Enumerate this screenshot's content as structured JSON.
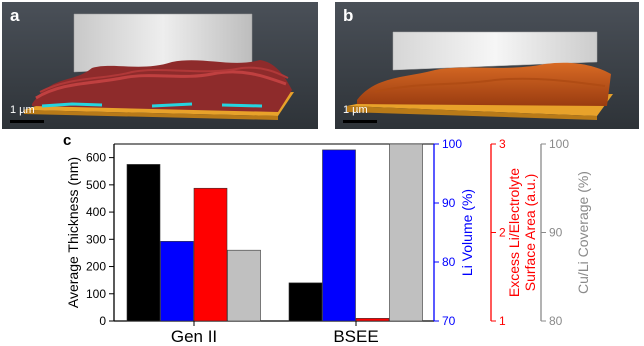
{
  "panel_a": {
    "letter": "a",
    "scale_label": "1 µm"
  },
  "panel_b": {
    "letter": "b",
    "scale_label": "1 µm"
  },
  "chart_letter": "c",
  "chart_data": {
    "type": "bar",
    "categories": [
      "Gen II",
      "BSEE"
    ],
    "series": [
      {
        "axis": "thickness",
        "color": "#000000",
        "values": [
          575,
          140
        ]
      },
      {
        "axis": "li_volume",
        "color": "#0000ff",
        "values": [
          83.5,
          99
        ]
      },
      {
        "axis": "surface_area",
        "color": "#ff0000",
        "values": [
          2.5,
          1.03
        ]
      },
      {
        "axis": "coverage",
        "color": "#c0c0c0",
        "values": [
          88,
          100
        ]
      }
    ],
    "axes": {
      "thickness": {
        "label": "Average Thickness (nm)",
        "range": [
          0,
          650
        ],
        "ticks": [
          0,
          100,
          200,
          300,
          400,
          500,
          600
        ],
        "color": "#000000"
      },
      "li_volume": {
        "label": "Li Volume (%)",
        "range": [
          70,
          100
        ],
        "ticks": [
          70,
          80,
          90,
          100
        ],
        "color": "#0000ff"
      },
      "surface_area": {
        "label_line1": "Excess Li/Electrolyte",
        "label_line2": "Surface Area (a.u.)",
        "range": [
          1,
          3
        ],
        "ticks": [
          1,
          2,
          3
        ],
        "color": "#ff0000"
      },
      "coverage": {
        "label": "Cu/Li Coverage (%)",
        "range": [
          80,
          100
        ],
        "ticks": [
          80,
          90,
          100
        ],
        "color": "#8a8a8a"
      }
    }
  }
}
